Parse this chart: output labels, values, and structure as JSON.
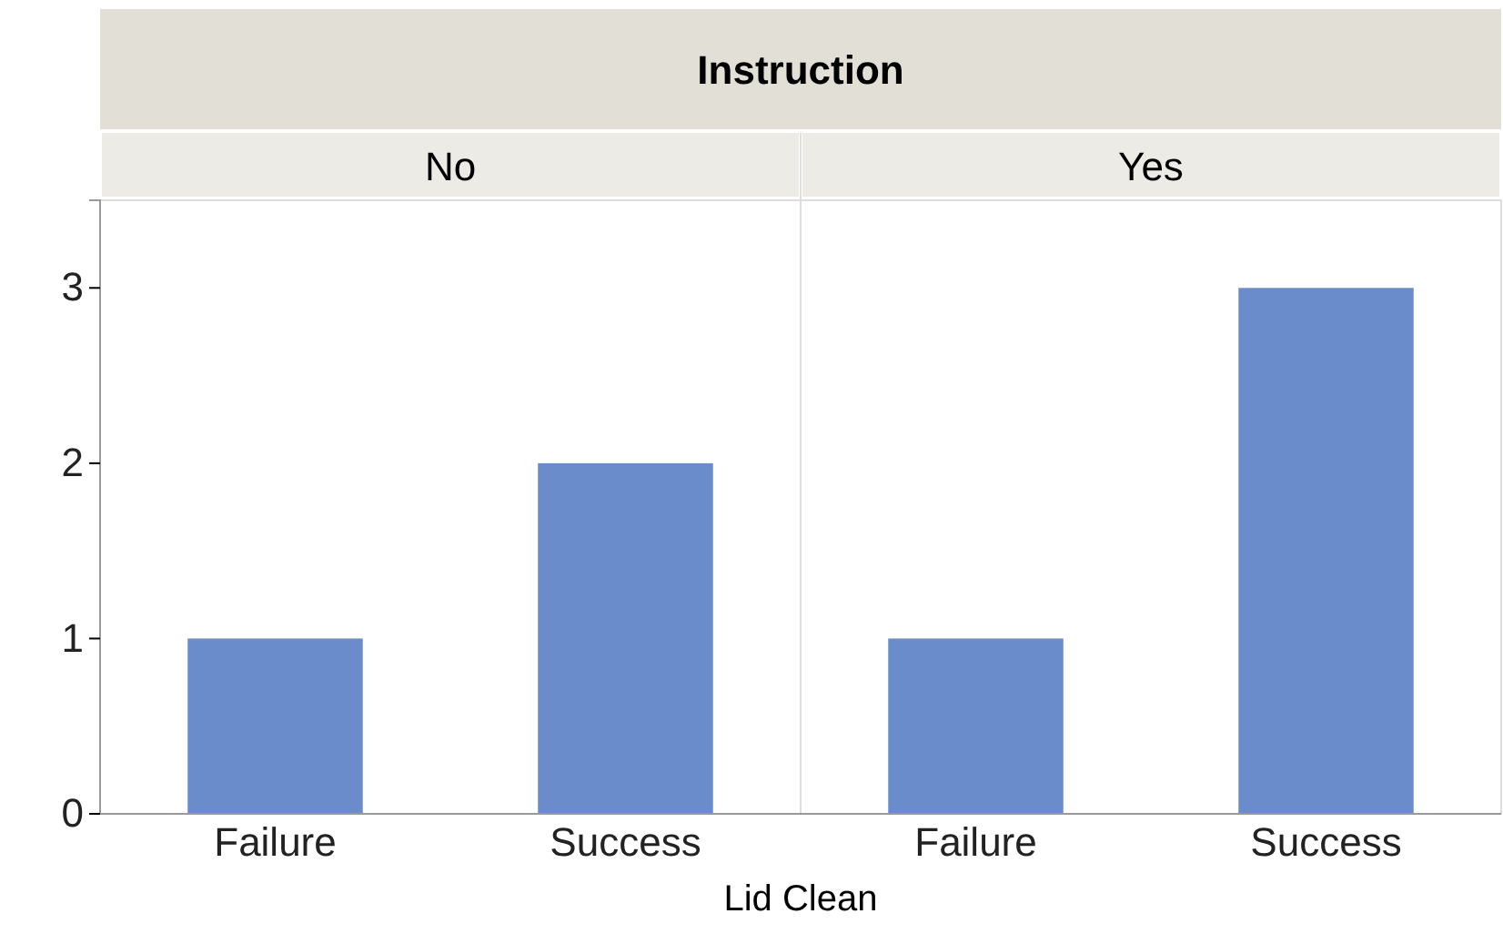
{
  "chart_data": {
    "type": "bar",
    "xlabel": "Lid Clean",
    "categories": [
      "Failure",
      "Success",
      "Failure",
      "Success"
    ],
    "values": [
      1,
      2,
      1,
      3
    ],
    "color": "#6a8cca",
    "ylim": [
      0,
      3.5
    ],
    "yticks": [
      0,
      1,
      2,
      3
    ],
    "grid": false,
    "annotations": [
      "Instruction",
      "No",
      "Yes"
    ]
  }
}
